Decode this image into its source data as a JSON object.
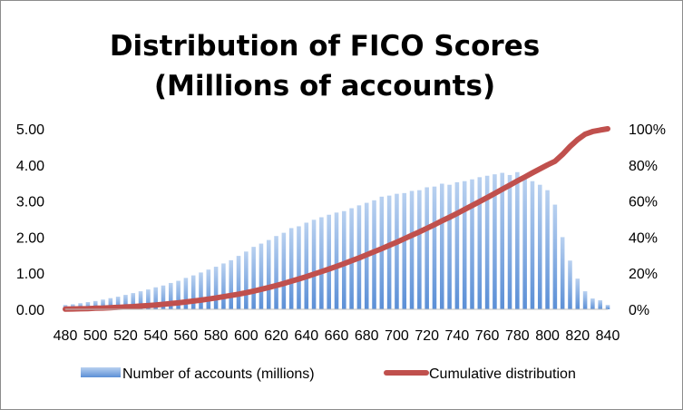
{
  "chart_data": {
    "type": "bar+line",
    "title_lines": [
      "Distribution of FICO Scores",
      "(Millions of accounts)"
    ],
    "x": [
      480,
      485,
      490,
      495,
      500,
      505,
      510,
      515,
      520,
      525,
      530,
      535,
      540,
      545,
      550,
      555,
      560,
      565,
      570,
      575,
      580,
      585,
      590,
      595,
      600,
      605,
      610,
      615,
      620,
      625,
      630,
      635,
      640,
      645,
      650,
      655,
      660,
      665,
      670,
      675,
      680,
      685,
      690,
      695,
      700,
      705,
      710,
      715,
      720,
      725,
      730,
      735,
      740,
      745,
      750,
      755,
      760,
      765,
      770,
      775,
      780,
      785,
      790,
      795,
      800,
      805,
      810,
      815,
      820,
      825,
      830,
      835,
      840
    ],
    "x_tick_labels": [
      "480",
      "500",
      "520",
      "540",
      "560",
      "580",
      "600",
      "620",
      "640",
      "660",
      "680",
      "700",
      "720",
      "740",
      "760",
      "780",
      "800",
      "820",
      "840"
    ],
    "y_left_ticks": [
      "0.00",
      "1.00",
      "2.00",
      "3.00",
      "4.00",
      "5.00"
    ],
    "y_left_range": [
      0,
      5
    ],
    "y_right_ticks": [
      "0%",
      "20%",
      "40%",
      "60%",
      "80%",
      "100%"
    ],
    "y_right_range": [
      0,
      1
    ],
    "series": [
      {
        "name": "Number of accounts (millions)",
        "type": "bar",
        "axis": "left",
        "color": "#5b8fd6",
        "values": [
          0.12,
          0.14,
          0.17,
          0.2,
          0.23,
          0.27,
          0.31,
          0.35,
          0.4,
          0.45,
          0.5,
          0.55,
          0.61,
          0.66,
          0.73,
          0.79,
          0.87,
          0.94,
          1.02,
          1.1,
          1.18,
          1.27,
          1.36,
          1.48,
          1.6,
          1.73,
          1.82,
          1.92,
          2.03,
          2.12,
          2.25,
          2.3,
          2.4,
          2.48,
          2.55,
          2.62,
          2.68,
          2.72,
          2.8,
          2.88,
          2.95,
          3.02,
          3.12,
          3.15,
          3.2,
          3.22,
          3.28,
          3.3,
          3.38,
          3.4,
          3.48,
          3.45,
          3.52,
          3.55,
          3.6,
          3.66,
          3.7,
          3.74,
          3.78,
          3.72,
          3.8,
          3.62,
          3.55,
          3.45,
          3.3,
          2.9,
          2.0,
          1.35,
          0.85,
          0.5,
          0.3,
          0.25,
          0.12
        ]
      },
      {
        "name": "Cumulative distribution",
        "type": "line",
        "axis": "right",
        "color": "#c0504d",
        "values": [
          0.001,
          0.002,
          0.003,
          0.004,
          0.006,
          0.007,
          0.009,
          0.011,
          0.013,
          0.015,
          0.018,
          0.021,
          0.024,
          0.028,
          0.032,
          0.036,
          0.041,
          0.046,
          0.051,
          0.057,
          0.063,
          0.07,
          0.077,
          0.084,
          0.092,
          0.101,
          0.111,
          0.121,
          0.132,
          0.143,
          0.156,
          0.168,
          0.181,
          0.195,
          0.209,
          0.223,
          0.238,
          0.253,
          0.269,
          0.285,
          0.302,
          0.319,
          0.336,
          0.354,
          0.372,
          0.391,
          0.41,
          0.429,
          0.449,
          0.469,
          0.49,
          0.51,
          0.531,
          0.553,
          0.575,
          0.597,
          0.619,
          0.642,
          0.665,
          0.688,
          0.711,
          0.733,
          0.756,
          0.778,
          0.8,
          0.82,
          0.858,
          0.902,
          0.94,
          0.97,
          0.985,
          0.993,
          1.0
        ]
      }
    ],
    "legend_position": "bottom",
    "grid": false
  }
}
